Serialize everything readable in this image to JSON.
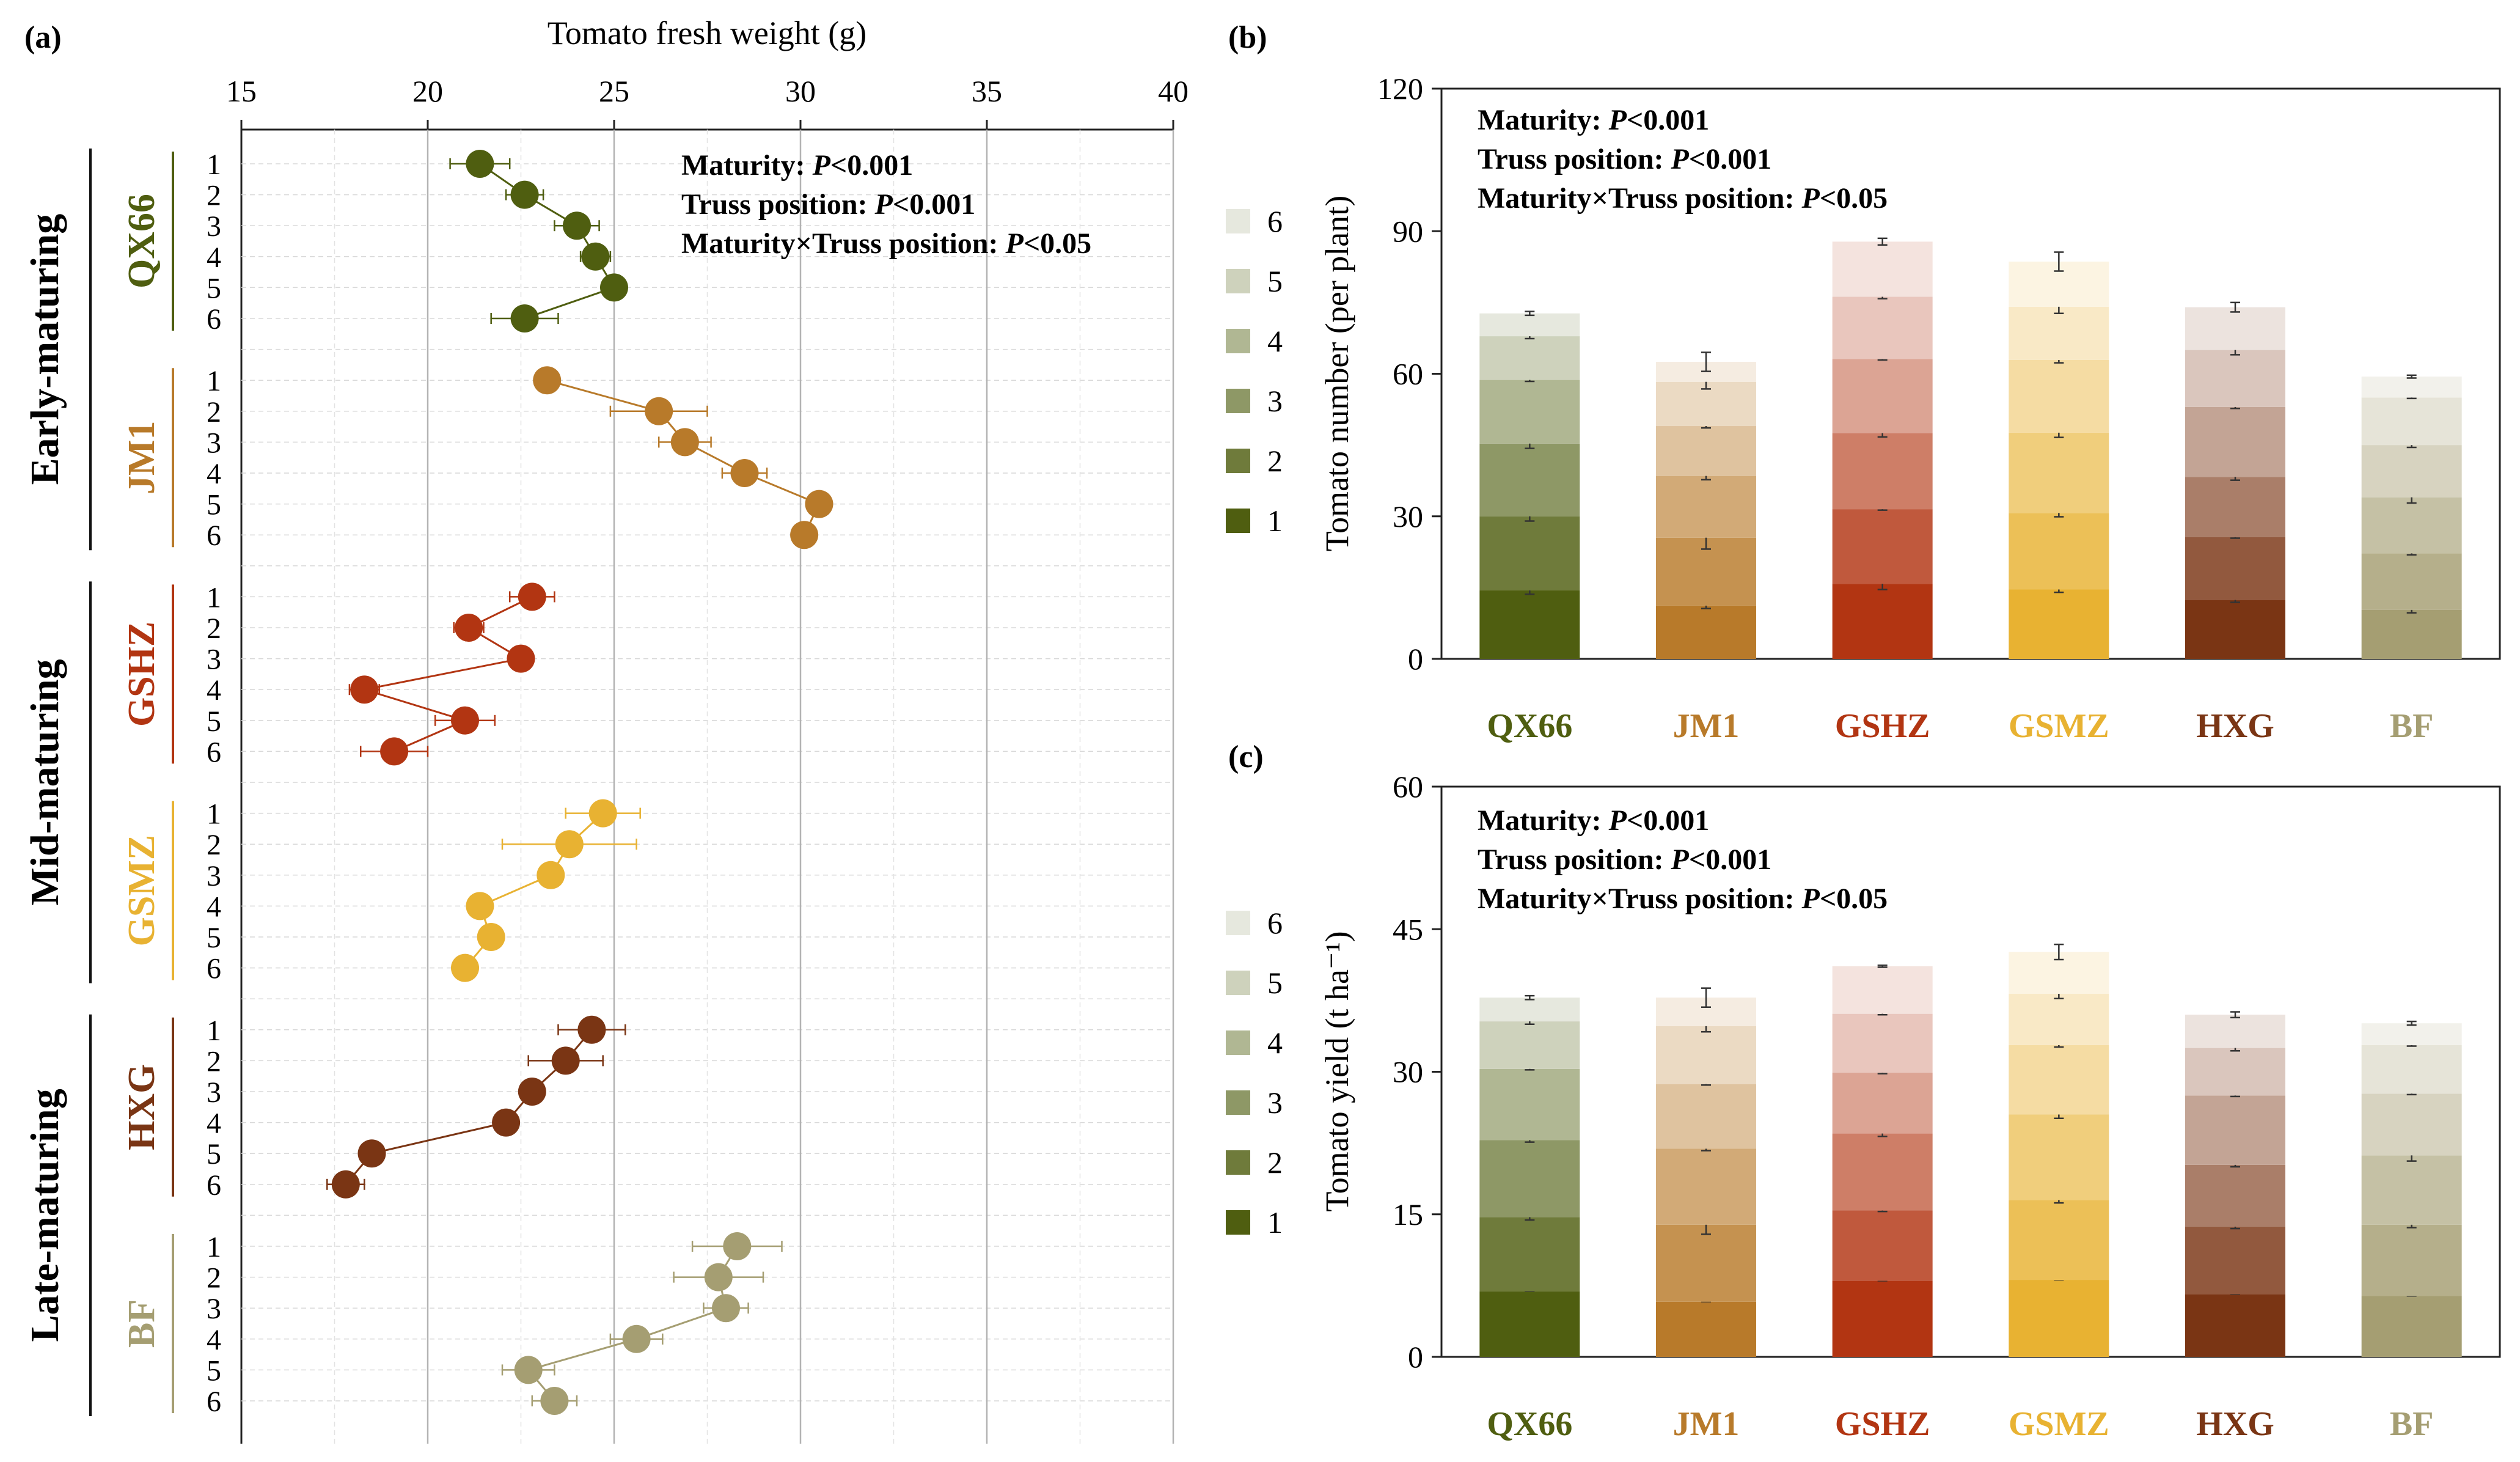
{
  "panels": {
    "a": "(a)",
    "b": "(b)",
    "c": "(c)"
  },
  "maturity_groups": [
    {
      "label": "Early-maturing",
      "cultivars": [
        "QX66",
        "JM1"
      ]
    },
    {
      "label": "Mid-maturing",
      "cultivars": [
        "GSHZ",
        "GSMZ"
      ]
    },
    {
      "label": "Late-maturing",
      "cultivars": [
        "HXG",
        "BF"
      ]
    }
  ],
  "cultivar_colors": {
    "QX66": "#4f5e10",
    "JM1": "#b87a2a",
    "GSHZ": "#b23512",
    "GSMZ": "#e8b232",
    "HXG": "#7a3514",
    "BF": "#a59e72"
  },
  "stat_annotation": {
    "line1_prefix": "Maturity: ",
    "line1_p": "P",
    "line1_value": "<0.001",
    "line2_prefix": "Truss position: ",
    "line2_p": "P",
    "line2_value": "<0.001",
    "line3_prefix": "Maturity×Truss position: ",
    "line3_p": "P",
    "line3_value": "<0.05"
  },
  "chart_data": [
    {
      "panel": "a",
      "type": "scatter",
      "title": "",
      "xlabel": "Tomato fresh weight (g)",
      "ylabel": "",
      "xlim": [
        15,
        40
      ],
      "xticks": [
        15,
        20,
        25,
        30,
        35,
        40
      ],
      "truss_labels": [
        "1",
        "2",
        "3",
        "4",
        "5",
        "6"
      ],
      "series": [
        {
          "name": "QX66",
          "values": [
            21.4,
            22.6,
            24.0,
            24.5,
            25.0,
            22.6
          ],
          "errors": [
            0.8,
            0.5,
            0.6,
            0.4,
            0.3,
            0.9
          ]
        },
        {
          "name": "JM1",
          "values": [
            23.2,
            26.2,
            26.9,
            28.5,
            30.5,
            30.1
          ],
          "errors": [
            0.3,
            1.3,
            0.7,
            0.6,
            0.3,
            0.3
          ]
        },
        {
          "name": "GSHZ",
          "values": [
            22.8,
            21.1,
            22.5,
            18.3,
            21.0,
            19.1
          ],
          "errors": [
            0.6,
            0.4,
            0.3,
            0.4,
            0.8,
            0.9
          ]
        },
        {
          "name": "GSMZ",
          "values": [
            24.7,
            23.8,
            23.3,
            21.4,
            21.7,
            21.0
          ],
          "errors": [
            1.0,
            1.8,
            0.3,
            0.3,
            0.3,
            0.3
          ]
        },
        {
          "name": "HXG",
          "values": [
            24.4,
            23.7,
            22.8,
            22.1,
            18.5,
            17.8
          ],
          "errors": [
            0.9,
            1.0,
            0.3,
            0.3,
            0.3,
            0.5
          ]
        },
        {
          "name": "BF",
          "values": [
            28.3,
            27.8,
            28.0,
            25.6,
            22.7,
            23.4
          ],
          "errors": [
            1.2,
            1.2,
            0.6,
            0.7,
            0.7,
            0.6
          ]
        }
      ]
    },
    {
      "panel": "b",
      "type": "bar",
      "stacked": true,
      "title": "",
      "xlabel": "",
      "ylabel": "Tomato number (per plant)",
      "ylim": [
        0,
        120
      ],
      "yticks": [
        0,
        30,
        60,
        90,
        120
      ],
      "categories": [
        "QX66",
        "JM1",
        "GSHZ",
        "GSMZ",
        "HXG",
        "BF"
      ],
      "legend": [
        "6",
        "5",
        "4",
        "3",
        "2",
        "1"
      ],
      "series": [
        {
          "name": "1",
          "values": [
            14.4,
            11.2,
            15.8,
            14.6,
            12.4,
            10.3
          ],
          "top_errors": [
            0.8,
            0.6,
            1.2,
            0.6,
            0.5,
            0.6
          ]
        },
        {
          "name": "2",
          "values": [
            15.6,
            14.3,
            15.7,
            16.1,
            13.2,
            11.9
          ],
          "top_errors": [
            1.0,
            2.4,
            0.2,
            0.8,
            0.2,
            0.3
          ]
        },
        {
          "name": "3",
          "values": [
            15.3,
            13.0,
            16.0,
            16.9,
            12.7,
            11.8
          ],
          "top_errors": [
            1.0,
            0.8,
            0.8,
            1.0,
            0.7,
            1.2
          ]
        },
        {
          "name": "4",
          "values": [
            13.4,
            10.5,
            15.6,
            15.3,
            14.7,
            11.0
          ],
          "top_errors": [
            0.3,
            0.4,
            0.2,
            0.6,
            0.3,
            0.5
          ]
        },
        {
          "name": "5",
          "values": [
            9.2,
            9.3,
            13.1,
            11.2,
            12.0,
            10.0
          ],
          "top_errors": [
            0.5,
            1.5,
            0.4,
            1.4,
            1.0,
            0.2
          ]
        },
        {
          "name": "6",
          "values": [
            4.8,
            4.2,
            11.6,
            9.5,
            9.0,
            4.4
          ],
          "top_errors": [
            0.4,
            2.0,
            0.7,
            2.0,
            1.0,
            0.3
          ]
        }
      ]
    },
    {
      "panel": "c",
      "type": "bar",
      "stacked": true,
      "title": "",
      "xlabel": "",
      "ylabel": "Tomato yield (t ha⁻¹)",
      "ylim": [
        0,
        60
      ],
      "yticks": [
        0,
        15,
        30,
        45,
        60
      ],
      "categories": [
        "QX66",
        "JM1",
        "GSHZ",
        "GSMZ",
        "HXG",
        "BF"
      ],
      "legend": [
        "6",
        "5",
        "4",
        "3",
        "2",
        "1"
      ],
      "series": [
        {
          "name": "1",
          "values": [
            6.9,
            5.8,
            8.0,
            8.1,
            6.6,
            6.4
          ],
          "top_errors": [
            0,
            0,
            0,
            0,
            0,
            0
          ]
        },
        {
          "name": "2",
          "values": [
            7.8,
            8.1,
            7.4,
            8.4,
            7.1,
            7.5
          ],
          "top_errors": [
            0.3,
            1.0,
            0.1,
            0.3,
            0.2,
            0.3
          ]
        },
        {
          "name": "3",
          "values": [
            8.1,
            8.0,
            8.1,
            9.0,
            6.5,
            7.3
          ],
          "top_errors": [
            0.2,
            0.2,
            0.3,
            0.4,
            0.2,
            0.6
          ]
        },
        {
          "name": "4",
          "values": [
            7.5,
            6.8,
            6.4,
            7.3,
            7.3,
            6.5
          ],
          "top_errors": [
            0.1,
            0.1,
            0.1,
            0.2,
            0.1,
            0.1
          ]
        },
        {
          "name": "5",
          "values": [
            5.0,
            6.1,
            6.2,
            5.4,
            5.0,
            5.1
          ],
          "top_errors": [
            0.3,
            0.6,
            0.1,
            0.5,
            0.3,
            0.1
          ]
        },
        {
          "name": "6",
          "values": [
            2.5,
            3.0,
            5.0,
            4.4,
            3.5,
            2.3
          ],
          "top_errors": [
            0.2,
            1.0,
            0.1,
            0.8,
            0.3,
            0.2
          ]
        }
      ]
    }
  ]
}
